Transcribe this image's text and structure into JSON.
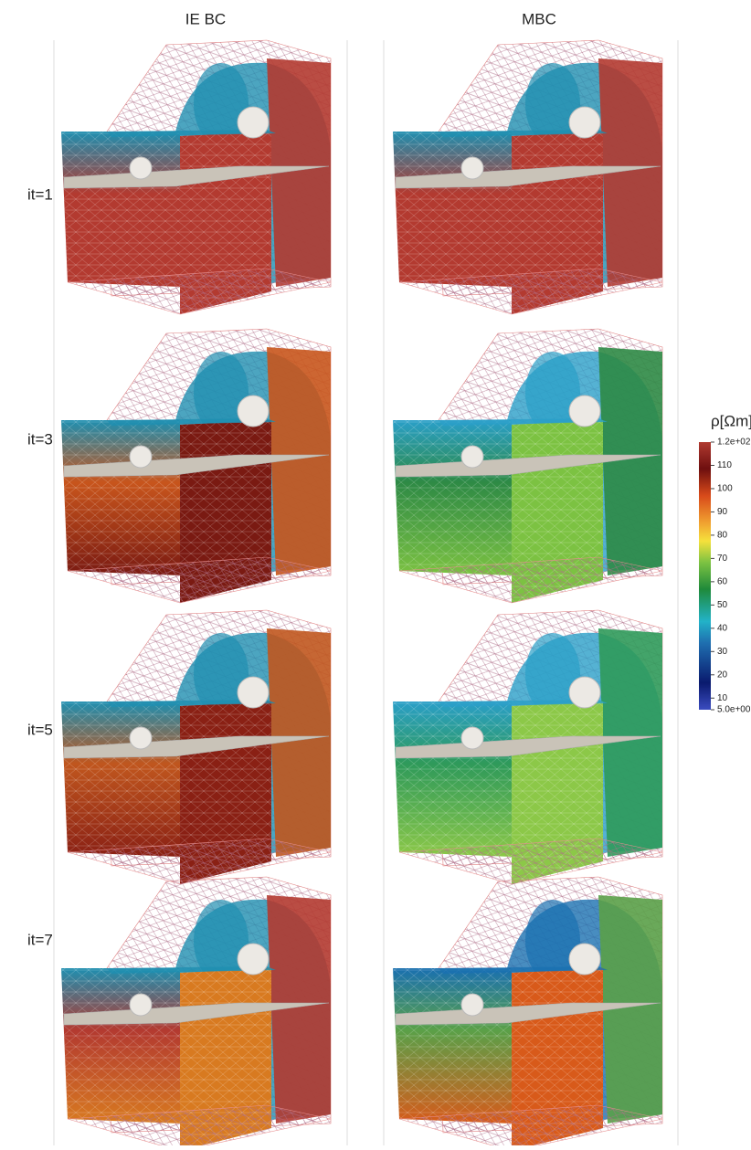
{
  "columns": [
    "IE BC",
    "MBC"
  ],
  "rows": [
    "it=1",
    "it=3",
    "it=5",
    "it=7"
  ],
  "colorbar": {
    "title": "ρ[Ωm]",
    "range": [
      5,
      120
    ],
    "ticks": [
      {
        "value": 120,
        "label": "1.2e+02"
      },
      110,
      100,
      90,
      80,
      70,
      60,
      50,
      40,
      30,
      20,
      10,
      {
        "value": 5,
        "label": "5.0e+00"
      }
    ]
  }
}
